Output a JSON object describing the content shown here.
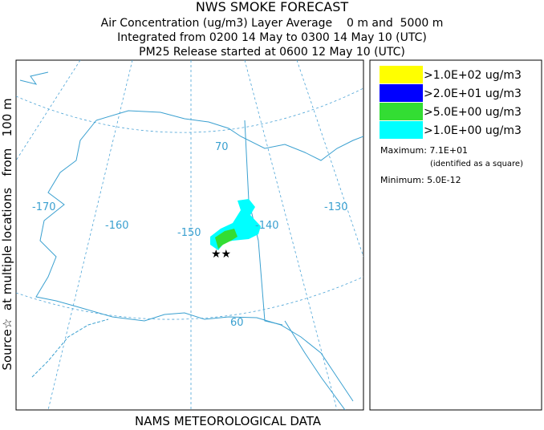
{
  "header": {
    "title": "NWS SMOKE FORECAST",
    "lines": [
      "Air Concentration (ug/m3) Layer Average    0 m and  5000 m",
      "Integrated from 0200 14 May to 0300 14 May 10 (UTC)",
      "PM25 Release started at 0600 12 May 10 (UTC)"
    ]
  },
  "side_label": "Source☆  at multiple locations   from   100 m",
  "footer": "NAMS METEOROLOGICAL DATA",
  "map": {
    "longitude_labels": [
      "-170",
      "-160",
      "-150",
      "-140",
      "-130"
    ],
    "latitude_labels": [
      "70",
      "60"
    ]
  },
  "legend": {
    "entries": [
      {
        "label": ">1.0E+02 ug/m3",
        "color": "#ffff00"
      },
      {
        "label": ">2.0E+01 ug/m3",
        "color": "#0000ff"
      },
      {
        "label": ">5.0E+00 ug/m3",
        "color": "#33dd33"
      },
      {
        "label": ">1.0E+00 ug/m3",
        "color": "#00ffff"
      }
    ],
    "maximum": "Maximum: 7.1E+01",
    "maximum_note": "(identified as a square)",
    "minimum": "Minimum: 5.0E-12"
  }
}
